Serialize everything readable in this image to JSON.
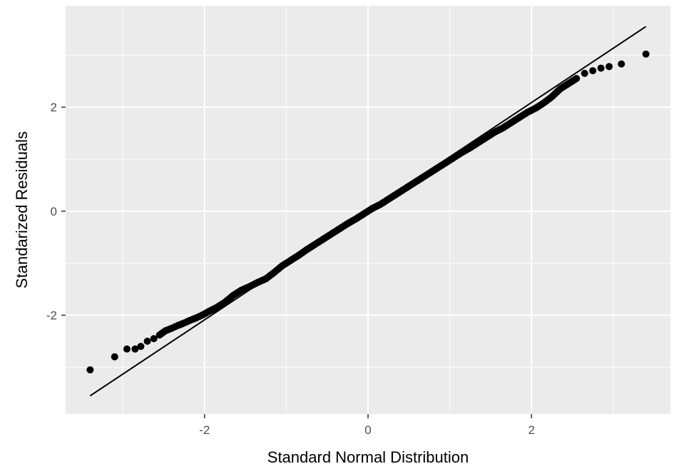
{
  "chart_data": {
    "type": "scatter",
    "title": "",
    "xlabel": "Standard Normal Distribution",
    "ylabel": "Standarized Residuals",
    "xlim": [
      -3.7,
      3.7
    ],
    "ylim": [
      -3.9,
      3.95
    ],
    "x_ticks": [
      -2,
      0,
      2
    ],
    "y_ticks": [
      -2,
      0,
      2
    ],
    "x_tick_labels": [
      "-2",
      "0",
      "2"
    ],
    "y_tick_labels": [
      "-2",
      "0",
      "2"
    ],
    "grid": true,
    "panel_background": "#ebebeb",
    "grid_color": "#ffffff",
    "point_color": "#000000",
    "series": [
      {
        "type": "points",
        "x": [
          -3.4,
          -3.1,
          -2.95,
          -2.85,
          -2.78,
          -2.7,
          -2.62,
          -2.55,
          -2.48,
          -2.4,
          -2.33,
          -2.25,
          -2.18,
          -2.1,
          -2.03,
          -1.95,
          -1.85,
          -1.75,
          -1.65,
          -1.55,
          -1.45,
          -1.35,
          -1.25,
          -1.15,
          -1.05,
          -0.95,
          -0.85,
          -0.75,
          -0.65,
          -0.55,
          -0.45,
          -0.35,
          -0.25,
          -0.15,
          -0.05,
          0.05,
          0.15,
          0.25,
          0.35,
          0.45,
          0.55,
          0.65,
          0.75,
          0.85,
          0.95,
          1.05,
          1.15,
          1.25,
          1.35,
          1.45,
          1.55,
          1.65,
          1.75,
          1.85,
          1.95,
          2.05,
          2.15,
          2.25,
          2.35,
          2.45,
          2.55,
          2.65,
          2.75,
          2.85,
          2.95,
          3.1,
          3.4
        ],
        "y": [
          -3.05,
          -2.8,
          -2.65,
          -2.65,
          -2.6,
          -2.5,
          -2.45,
          -2.38,
          -2.3,
          -2.25,
          -2.2,
          -2.15,
          -2.1,
          -2.05,
          -2.0,
          -1.93,
          -1.85,
          -1.75,
          -1.62,
          -1.52,
          -1.45,
          -1.37,
          -1.3,
          -1.18,
          -1.05,
          -0.95,
          -0.85,
          -0.74,
          -0.64,
          -0.54,
          -0.44,
          -0.34,
          -0.24,
          -0.15,
          -0.05,
          0.05,
          0.13,
          0.23,
          0.33,
          0.43,
          0.53,
          0.63,
          0.73,
          0.83,
          0.93,
          1.03,
          1.13,
          1.22,
          1.32,
          1.42,
          1.52,
          1.6,
          1.7,
          1.8,
          1.9,
          1.98,
          2.08,
          2.2,
          2.35,
          2.45,
          2.55,
          2.65,
          2.7,
          2.75,
          2.78,
          2.83,
          3.02
        ]
      },
      {
        "type": "reference_line",
        "x": [
          -3.4,
          3.4
        ],
        "y": [
          -3.55,
          3.55
        ]
      }
    ]
  }
}
